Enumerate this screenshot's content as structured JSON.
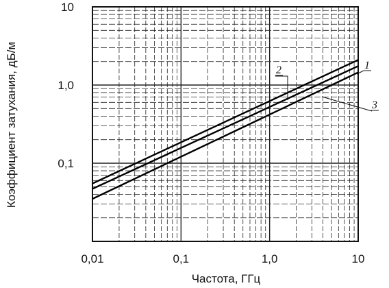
{
  "chart_data": {
    "type": "line",
    "xscale": "log",
    "yscale": "log",
    "xlim": [
      0.01,
      10
    ],
    "ylim": [
      0.01,
      10
    ],
    "xticks": [
      {
        "value": 0.01,
        "label": "0,01"
      },
      {
        "value": 0.1,
        "label": "0,1"
      },
      {
        "value": 1,
        "label": "1,0"
      },
      {
        "value": 10,
        "label": "10"
      }
    ],
    "yticks": [
      {
        "value": 0.1,
        "label": "0,1"
      },
      {
        "value": 1,
        "label": "1,0"
      },
      {
        "value": 10,
        "label": "10"
      }
    ],
    "xlabel": "Частота, ГГц",
    "ylabel": "Коэффициент затухания, дБ/м",
    "grid": true,
    "series": [
      {
        "name": "1",
        "x": [
          0.01,
          10
        ],
        "y": [
          0.055,
          2.1
        ]
      },
      {
        "name": "2",
        "x": [
          0.01,
          10
        ],
        "y": [
          0.047,
          1.75
        ]
      },
      {
        "name": "3",
        "x": [
          0.01,
          10
        ],
        "y": [
          0.035,
          1.45
        ]
      }
    ]
  }
}
